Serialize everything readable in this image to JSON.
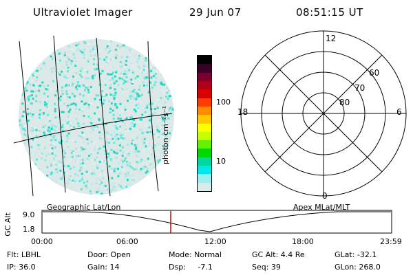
{
  "header": {
    "instrument": "Ultraviolet Imager",
    "date": "29 Jun 07",
    "time": "08:51:15 UT"
  },
  "colorbar": {
    "unit_label": "photon cm⁻²s⁻¹",
    "ticks": [
      "100",
      "10"
    ],
    "colors": [
      "#000000",
      "#3a0028",
      "#7a0030",
      "#b0001a",
      "#d80000",
      "#ff3c00",
      "#ff8c00",
      "#ffc800",
      "#ffff00",
      "#c8ff00",
      "#64f000",
      "#00d800",
      "#00d8a0",
      "#00e8e8",
      "#9af0f0",
      "#d8ecec"
    ]
  },
  "polar_plot": {
    "mlt_labels": {
      "top": "12",
      "left": "18",
      "right": "6",
      "bottom": "0"
    },
    "lat_labels": [
      "60",
      "70",
      "80"
    ]
  },
  "timeline": {
    "left_label": "Geographic Lat/Lon",
    "right_label": "Apex MLat/MLT",
    "y_axis_label": "GC Alt",
    "y_ticks": [
      "9.0",
      "1.8"
    ],
    "x_ticks": [
      "00:00",
      "06:00",
      "12:00",
      "18:00",
      "23:59"
    ],
    "marker_color": "#cc0000"
  },
  "info": {
    "flt": "Flt: LBHL",
    "ip": "IP: 36.0",
    "door": "Door: Open",
    "gain": "Gain: 14",
    "mode": "Mode: Normal",
    "dsp": "Dsp:     -7.1",
    "gc_alt": "GC Alt: 4.4 Re",
    "seq": "Seq: 39",
    "glat": "GLat: -32.1",
    "glon": "GLon: 268.0"
  }
}
